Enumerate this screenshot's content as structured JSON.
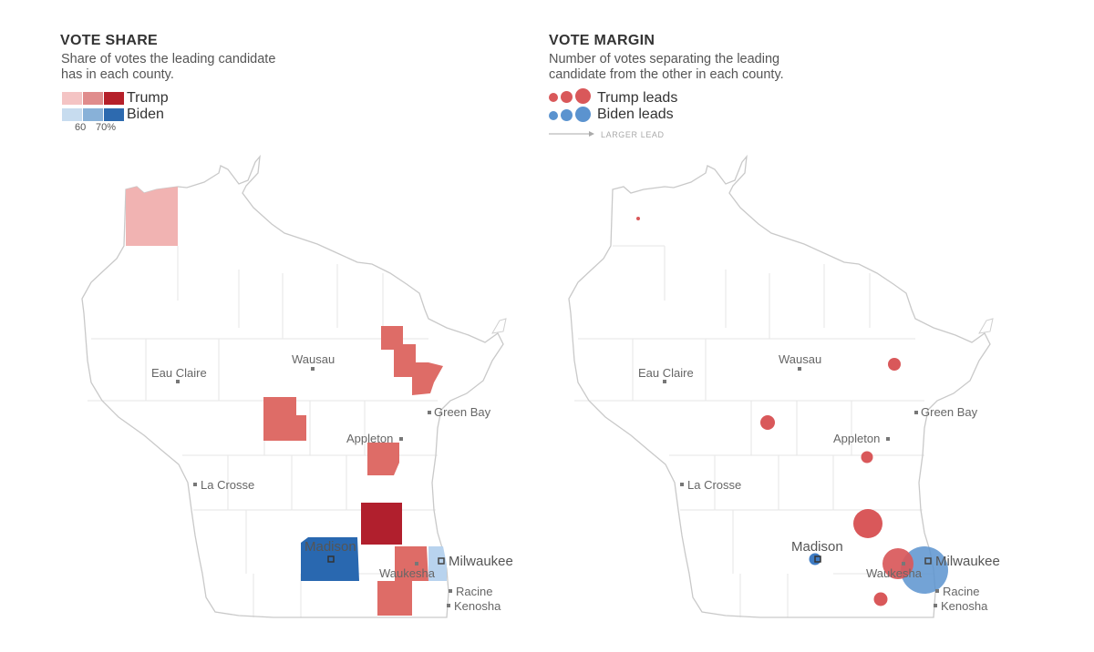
{
  "vote_share": {
    "title": "VOTE SHARE",
    "subtitle": "Share of votes the leading candidate has in each county.",
    "legend": {
      "trump_label": "Trump",
      "biden_label": "Biden",
      "tick_60": "60",
      "tick_70": "70%",
      "trump_colors": [
        "#f4c4c4",
        "#e08c8c",
        "#b5202a"
      ],
      "biden_colors": [
        "#c7dcef",
        "#88b1d8",
        "#2d6aaf"
      ]
    }
  },
  "vote_margin": {
    "title": "VOTE MARGIN",
    "subtitle": "Number of votes separating the leading candidate from the other in each county.",
    "legend": {
      "trump_label": "Trump leads",
      "biden_label": "Biden leads",
      "larger_lead": "LARGER LEAD",
      "trump_color": "#d9585a",
      "biden_color": "#5b93cf"
    }
  },
  "cities": {
    "eau_claire": "Eau Claire",
    "wausau": "Wausau",
    "green_bay": "Green Bay",
    "appleton": "Appleton",
    "la_crosse": "La Crosse",
    "madison": "Madison",
    "milwaukee": "Milwaukee",
    "waukesha": "Waukesha",
    "racine": "Racine",
    "kenosha": "Kenosha"
  },
  "counties_shaded": [
    {
      "name": "Douglas",
      "leader": "Trump",
      "share_bin": "under 60"
    },
    {
      "name": "Marathon",
      "leader": "Trump",
      "share_bin": "60-70"
    },
    {
      "name": "Wood",
      "leader": "Trump",
      "share_bin": "60-70"
    },
    {
      "name": "Shawano",
      "leader": "Trump",
      "share_bin": "60-70"
    },
    {
      "name": "Winnebago",
      "leader": "Trump",
      "share_bin": "60-70"
    },
    {
      "name": "Dodge",
      "leader": "Trump",
      "share_bin": "over 70"
    },
    {
      "name": "Dane",
      "leader": "Biden",
      "share_bin": "over 70"
    },
    {
      "name": "Waukesha",
      "leader": "Trump",
      "share_bin": "60-70"
    },
    {
      "name": "Walworth",
      "leader": "Trump",
      "share_bin": "60-70"
    },
    {
      "name": "Milwaukee",
      "leader": "Biden",
      "share_bin": "under 60"
    }
  ],
  "margin_bubbles": [
    {
      "name": "Douglas",
      "leader": "Trump",
      "size": "tiny"
    },
    {
      "name": "Shawano",
      "leader": "Trump",
      "size": "small"
    },
    {
      "name": "Wood",
      "leader": "Trump",
      "size": "small"
    },
    {
      "name": "Winnebago",
      "leader": "Trump",
      "size": "small"
    },
    {
      "name": "Dodge",
      "leader": "Trump",
      "size": "medium"
    },
    {
      "name": "Waukesha",
      "leader": "Trump",
      "size": "large"
    },
    {
      "name": "Walworth",
      "leader": "Trump",
      "size": "small"
    },
    {
      "name": "Dane",
      "leader": "Biden",
      "size": "small"
    },
    {
      "name": "Milwaukee",
      "leader": "Biden",
      "size": "largest"
    }
  ]
}
